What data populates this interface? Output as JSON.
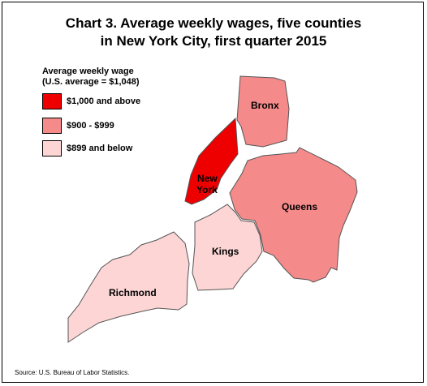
{
  "title_line1": "Chart 3. Average weekly wages, five counties",
  "title_line2": "in New York City, first quarter 2015",
  "legend": {
    "title_line1": "Average weekly wage",
    "title_line2": "(U.S. average = $1,048)",
    "items": [
      {
        "label": "$1,000 and above",
        "color": "#ee0000"
      },
      {
        "label": "$900 - $999",
        "color": "#f58a8a"
      },
      {
        "label": "$899 and below",
        "color": "#fdd5d5"
      }
    ]
  },
  "counties": {
    "bronx": {
      "label": "Bronx",
      "color": "#f58a8a"
    },
    "new_york": {
      "label_line1": "New",
      "label_line2": "York",
      "color": "#ee0000"
    },
    "queens": {
      "label": "Queens",
      "color": "#f58a8a"
    },
    "kings": {
      "label": "Kings",
      "color": "#fdd5d5"
    },
    "richmond": {
      "label": "Richmond",
      "color": "#fdd5d5"
    }
  },
  "source": "Source: U.S. Bureau of Labor Statistics."
}
